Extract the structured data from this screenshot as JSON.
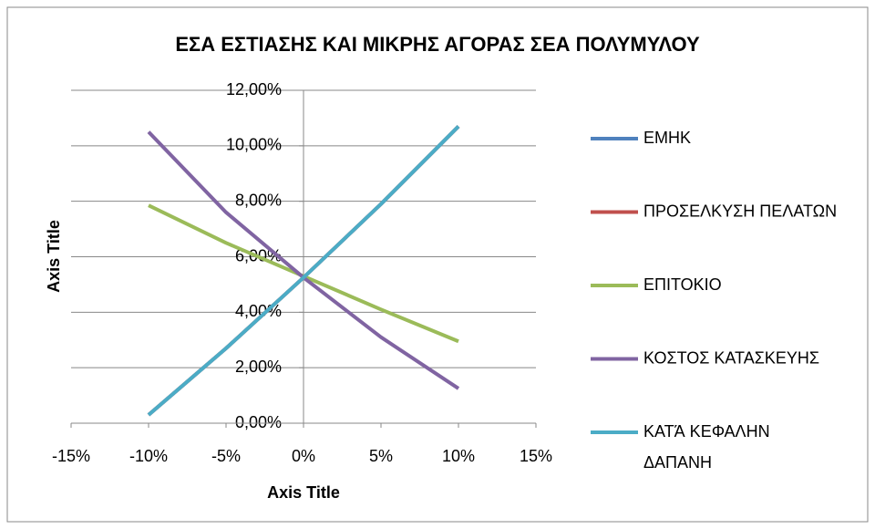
{
  "chart_data": {
    "type": "line",
    "title": "ΕΣΑ ΕΣΤΙΑΣΗΣ ΚΑΙ ΜΙΚΡΗΣ ΑΓΟΡΑΣ ΣΕΑ ΠΟΛΥΜΥΛΟΥ",
    "x_label": "Axis Title",
    "y_label": "Axis Title",
    "x": [
      -10,
      -5,
      0,
      5,
      10
    ],
    "series": [
      {
        "name": "ΕΜΗΚ",
        "color": "#4f81bd",
        "values": [
          0.3,
          2.7,
          5.25,
          7.9,
          10.7
        ]
      },
      {
        "name": "ΠΡΟΣΕΛΚΥΣΗ ΠΕΛΑΤΩΝ",
        "color": "#c0504d",
        "values": [
          0.3,
          2.7,
          5.25,
          7.9,
          10.7
        ]
      },
      {
        "name": "ΕΠΙΤΟΚΙΟ",
        "color": "#9bbb59",
        "values": [
          7.85,
          6.5,
          5.3,
          4.1,
          2.95
        ]
      },
      {
        "name": "ΚΟΣΤΟΣ ΚΑΤΑΣΚΕΥΗΣ",
        "color": "#8064a2",
        "values": [
          10.5,
          7.6,
          5.25,
          3.1,
          1.25
        ]
      },
      {
        "name": "ΚΑΤΆ ΚΕΦΑΛΗΝ ΔΑΠΑΝΗ",
        "color": "#4bacc6",
        "values": [
          0.3,
          2.7,
          5.25,
          7.9,
          10.7
        ]
      }
    ],
    "xlim": [
      -15,
      15
    ],
    "xticks": [
      {
        "value": -15,
        "label": "-15%"
      },
      {
        "value": -10,
        "label": "-10%"
      },
      {
        "value": -5,
        "label": "-5%"
      },
      {
        "value": 0,
        "label": "0%"
      },
      {
        "value": 5,
        "label": "5%"
      },
      {
        "value": 10,
        "label": "10%"
      },
      {
        "value": 15,
        "label": "15%"
      }
    ],
    "ylim": [
      0,
      12
    ],
    "yticks": [
      {
        "value": 0,
        "label": "0,00%"
      },
      {
        "value": 2,
        "label": "2,00%"
      },
      {
        "value": 4,
        "label": "4,00%"
      },
      {
        "value": 6,
        "label": "6,00%"
      },
      {
        "value": 8,
        "label": "8,00%"
      },
      {
        "value": 10,
        "label": "10,00%"
      },
      {
        "value": 12,
        "label": "12,00%"
      }
    ],
    "grid": true,
    "legend": "right"
  }
}
